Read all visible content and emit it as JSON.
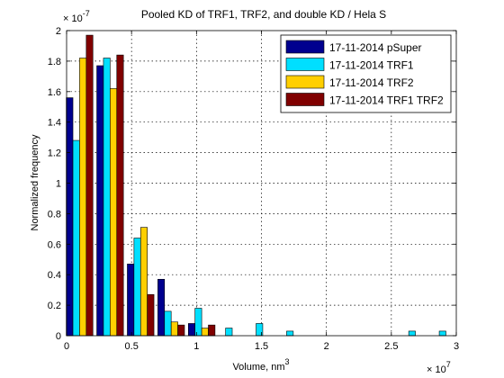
{
  "chart_data": {
    "type": "bar",
    "title": "Pooled KD of TRF1, TRF2, and double KD / Hela S",
    "xlabel": "Volume, nm",
    "xlabel_sup": "3",
    "ylabel": "Normalized frequency",
    "x_exponent": "× 10",
    "x_exponent_sup": "7",
    "y_exponent": "× 10",
    "y_exponent_sup": "-7",
    "xlim": [
      0,
      3
    ],
    "ylim": [
      0,
      2
    ],
    "x_unit_scale": 10000000,
    "y_unit_scale": 1e-07,
    "xticks": [
      0,
      0.5,
      1,
      1.5,
      2,
      2.5,
      3
    ],
    "xtick_labels": [
      "0",
      "0.5",
      "1",
      "1.5",
      "2",
      "2.5",
      "3"
    ],
    "yticks": [
      0,
      0.2,
      0.4,
      0.6,
      0.8,
      1,
      1.2,
      1.4,
      1.6,
      1.8,
      2
    ],
    "ytick_labels": [
      "0",
      "0.2",
      "0.4",
      "0.6",
      "0.8",
      "1",
      "1.2",
      "1.4",
      "1.6",
      "1.8",
      "2"
    ],
    "grid": true,
    "legend_position": "top-right",
    "bin_centers": [
      0.1,
      0.335,
      0.57,
      0.805,
      1.04,
      1.275,
      1.51,
      1.745,
      1.98,
      2.215,
      2.45,
      2.685,
      2.92
    ],
    "series": [
      {
        "name": "17-11-2014 pSuper",
        "color": "#00008f",
        "values": [
          1.56,
          1.77,
          0.47,
          0.37,
          0.08,
          0,
          0,
          0,
          0,
          0,
          0,
          0,
          0
        ]
      },
      {
        "name": "17-11-2014 TRF1",
        "color": "#00dfff",
        "values": [
          1.28,
          1.82,
          0.64,
          0.16,
          0.18,
          0.05,
          0.08,
          0.03,
          0,
          0,
          0,
          0.03,
          0.03
        ]
      },
      {
        "name": "17-11-2014 TRF2",
        "color": "#ffcf00",
        "values": [
          1.82,
          1.62,
          0.71,
          0.09,
          0.05,
          0,
          0,
          0,
          0,
          0,
          0,
          0,
          0
        ]
      },
      {
        "name": "17-11-2014 TRF1 TRF2",
        "color": "#800000",
        "values": [
          1.97,
          1.84,
          0.27,
          0.07,
          0.07,
          0,
          0,
          0,
          0,
          0,
          0,
          0,
          0
        ]
      }
    ]
  }
}
